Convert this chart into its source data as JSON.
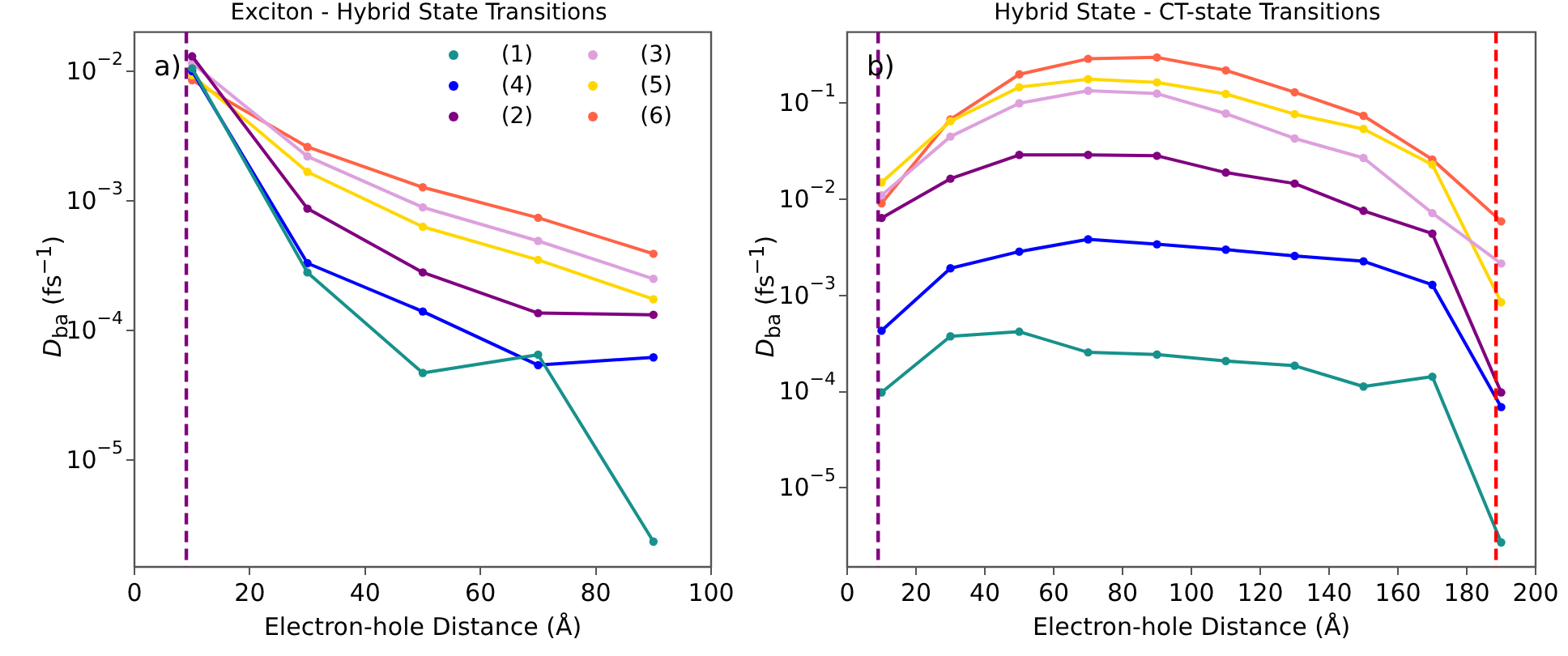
{
  "chart_data": [
    {
      "type": "line",
      "title": "Exciton - Hybrid State Transitions",
      "xlabel": "Electron-hole Distance (Å)",
      "ylabel": "D$_{ba}$ (fs$^{−1}$)",
      "annotations": [
        "a)"
      ],
      "x": [
        10,
        30,
        50,
        70,
        90
      ],
      "series": [
        {
          "name": "(1)",
          "color": "#17918c",
          "values": [
            0.0105,
            0.00028,
            4.7e-05,
            6.5e-05,
            2.35e-06
          ]
        },
        {
          "name": "(4)",
          "color": "#0000ff",
          "values": [
            0.01,
            0.00033,
            0.00014,
            5.4e-05,
            6.2e-05
          ]
        },
        {
          "name": "(2)",
          "color": "#800080",
          "values": [
            0.013,
            0.00087,
            0.00028,
            0.000136,
            0.000132
          ]
        },
        {
          "name": "(3)",
          "color": "#dda0dd",
          "values": [
            0.0115,
            0.0022,
            0.00089,
            0.00049,
            0.00025
          ]
        },
        {
          "name": "(5)",
          "color": "#ffd700",
          "values": [
            0.0093,
            0.00167,
            0.00063,
            0.00035,
            0.000174
          ]
        },
        {
          "name": "(6)",
          "color": "#ff6347",
          "values": [
            0.0085,
            0.0026,
            0.00127,
            0.00074,
            0.00039
          ]
        }
      ],
      "xlim": [
        0,
        100
      ],
      "xticks": [
        0,
        20,
        40,
        60,
        80,
        100
      ],
      "ylim": [
        1.5e-06,
        0.02
      ],
      "yticks": [
        {
          "value": 0.01,
          "label": "10$^{−2}$"
        },
        {
          "value": 0.001,
          "label": "10$^{−3}$"
        },
        {
          "value": 0.0001,
          "label": "10$^{−4}$"
        },
        {
          "value": 1e-05,
          "label": "10$^{−5}$"
        }
      ],
      "log": "y",
      "legend": "top right",
      "marker": "circle",
      "ref_lines": [
        {
          "axis": "x",
          "value": 9,
          "color": "#800080",
          "line_style": "dashed"
        }
      ]
    },
    {
      "type": "line",
      "title": "Hybrid State - CT-state Transitions",
      "xlabel": "Electron-hole Distance (Å)",
      "ylabel": "D$_{ba}$ (fs$^{−1}$)",
      "annotations": [
        "b)"
      ],
      "x": [
        10,
        30,
        50,
        70,
        90,
        110,
        130,
        150,
        170,
        190
      ],
      "series": [
        {
          "color": "#17918c",
          "values": [
            9.8e-05,
            0.000376,
            0.00042,
            0.000256,
            0.000243,
            0.000208,
            0.000186,
            0.000113,
            0.000143,
            2.7e-06
          ]
        },
        {
          "color": "#0000ff",
          "values": [
            0.00043,
            0.00192,
            0.00286,
            0.00384,
            0.00341,
            0.003,
            0.00258,
            0.00227,
            0.00129,
            6.9e-05
          ]
        },
        {
          "color": "#800080",
          "values": [
            0.0064,
            0.0164,
            0.029,
            0.029,
            0.0284,
            0.019,
            0.0146,
            0.0076,
            0.0044,
            9.8e-05
          ]
        },
        {
          "color": "#dda0dd",
          "values": [
            0.011,
            0.045,
            0.1,
            0.135,
            0.126,
            0.078,
            0.043,
            0.027,
            0.0072,
            0.00215
          ]
        },
        {
          "color": "#ffd700",
          "values": [
            0.015,
            0.065,
            0.147,
            0.178,
            0.165,
            0.125,
            0.077,
            0.054,
            0.023,
            0.00085
          ]
        },
        {
          "color": "#ff6347",
          "values": [
            0.0091,
            0.068,
            0.2,
            0.29,
            0.3,
            0.22,
            0.13,
            0.074,
            0.026,
            0.0059
          ]
        }
      ],
      "xlim": [
        0,
        200
      ],
      "xticks": [
        0,
        20,
        40,
        60,
        80,
        100,
        120,
        140,
        160,
        180,
        200
      ],
      "ylim": [
        1.5e-06,
        0.55
      ],
      "yticks": [
        {
          "value": 0.1,
          "label": "10$^{−1}$"
        },
        {
          "value": 0.01,
          "label": "10$^{−2}$"
        },
        {
          "value": 0.001,
          "label": "10$^{−3}$"
        },
        {
          "value": 0.0001,
          "label": "10$^{−4}$"
        },
        {
          "value": 1e-05,
          "label": "10$^{−5}$"
        }
      ],
      "log": "y",
      "marker": "circle",
      "ref_lines": [
        {
          "axis": "x",
          "value": 9,
          "color": "#800080",
          "line_style": "dashed"
        },
        {
          "axis": "x",
          "value": 188.5,
          "color": "#ff0000",
          "line_style": "dashed"
        }
      ]
    }
  ]
}
